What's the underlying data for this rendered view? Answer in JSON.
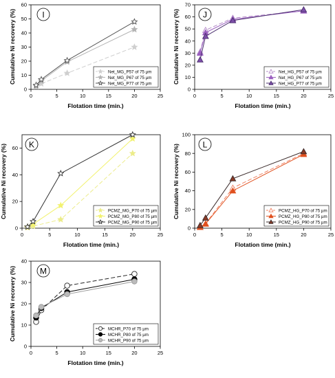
{
  "chart_data": [
    {
      "type": "line",
      "panel_label": "I",
      "xlabel": "Flotation time (min.)",
      "ylabel": "Cumulative Ni recovery (%)",
      "xlim": [
        0,
        25
      ],
      "ylim": [
        0,
        60
      ],
      "x_ticks": [
        0,
        5,
        10,
        15,
        20,
        25
      ],
      "y_ticks": [
        0,
        10,
        20,
        30,
        40,
        50,
        60
      ],
      "legend_position": "bottom-right",
      "series": [
        {
          "name": "Net_MG_P57 of 75 µm",
          "x": [
            1,
            2,
            7,
            20
          ],
          "y": [
            2,
            4,
            11.5,
            30
          ],
          "color": "#cfcfcf",
          "dash": "6,3",
          "marker": "star",
          "marker_fill": "#cfcfcf"
        },
        {
          "name": "Net_MG_P67 of 75 µm",
          "x": [
            1,
            2,
            7,
            20
          ],
          "y": [
            2.5,
            6,
            19.5,
            42.5
          ],
          "color": "#b3b3b3",
          "dash": "",
          "marker": "star",
          "marker_fill": "#b3b3b3"
        },
        {
          "name": "Net_MG_P77 of 75 µm",
          "x": [
            1,
            2,
            7,
            20
          ],
          "y": [
            3,
            7,
            20.5,
            48
          ],
          "color": "#555555",
          "dash": "",
          "marker": "star",
          "marker_fill": "#ffffff"
        }
      ]
    },
    {
      "type": "line",
      "panel_label": "J",
      "xlabel": "Flotation time (min.)",
      "ylabel": "Cumulative Ni recovery (%)",
      "xlim": [
        0,
        25
      ],
      "ylim": [
        0,
        70
      ],
      "x_ticks": [
        0,
        5,
        10,
        15,
        20,
        25
      ],
      "y_ticks": [
        0,
        10,
        20,
        30,
        40,
        50,
        60,
        70
      ],
      "legend_position": "bottom-right",
      "series": [
        {
          "name": "Net_HG_P57 of 75 µm",
          "x": [
            1,
            2,
            7,
            20
          ],
          "y": [
            31,
            49,
            59,
            65
          ],
          "color": "#b48cc8",
          "dash": "6,3",
          "marker": "triangle",
          "marker_fill": "#ffffff"
        },
        {
          "name": "Net_HG_P67 of 75 µm",
          "x": [
            1,
            2,
            7,
            20
          ],
          "y": [
            30,
            47,
            58,
            65
          ],
          "color": "#9a5fbf",
          "dash": "",
          "marker": "triangle",
          "marker_fill": "#9a5fbf"
        },
        {
          "name": "Net_HG_P77 of 75 µm",
          "x": [
            1,
            2,
            7,
            20
          ],
          "y": [
            24.5,
            44,
            57,
            66
          ],
          "color": "#4a2e6e",
          "dash": "",
          "marker": "triangle",
          "marker_fill": "#7d4fa8"
        }
      ]
    },
    {
      "type": "line",
      "panel_label": "K",
      "xlabel": "Flotation time (min.)",
      "ylabel": "Cumulative Ni recovery (%)",
      "xlim": [
        0,
        25
      ],
      "ylim": [
        0,
        70
      ],
      "x_ticks": [
        0,
        5,
        10,
        15,
        20,
        25
      ],
      "y_ticks": [
        0,
        20,
        40,
        60
      ],
      "legend_position": "bottom-right",
      "series": [
        {
          "name": "PCMZ_MG_P70 of 75 µm",
          "x": [
            1,
            2,
            7,
            20
          ],
          "y": [
            0.5,
            1.5,
            6.5,
            56
          ],
          "color": "#ecec8a",
          "dash": "6,3",
          "marker": "star",
          "marker_fill": "#ecec8a"
        },
        {
          "name": "PCMZ_MG_P80 of 75 µm",
          "x": [
            1,
            2,
            7,
            20
          ],
          "y": [
            1,
            3,
            17,
            67
          ],
          "color": "#f2f26e",
          "dash": "",
          "marker": "star",
          "marker_fill": "#f2f26e"
        },
        {
          "name": "PCMZ_MG_P90 of 75 µm",
          "x": [
            1,
            2,
            7,
            20
          ],
          "y": [
            1,
            5,
            41,
            70
          ],
          "color": "#333333",
          "dash": "",
          "marker": "star",
          "marker_fill": "#ffffff"
        }
      ]
    },
    {
      "type": "line",
      "panel_label": "L",
      "xlabel": "Flotation time (min.)",
      "ylabel": "Cumulative Ni recovery (%)",
      "xlim": [
        0,
        25
      ],
      "ylim": [
        0,
        100
      ],
      "x_ticks": [
        0,
        5,
        10,
        15,
        20,
        25
      ],
      "y_ticks": [
        0,
        20,
        40,
        60,
        80,
        100
      ],
      "legend_position": "bottom-right",
      "series": [
        {
          "name": "PCMZ_HG_P70 of 75 µm",
          "x": [
            1,
            2,
            7,
            20
          ],
          "y": [
            1,
            5,
            43,
            80
          ],
          "color": "#f08060",
          "dash": "6,3",
          "marker": "triangle",
          "marker_fill": "#ffffff"
        },
        {
          "name": "PCMZ_HG_P80 of 75 µm",
          "x": [
            1,
            2,
            7,
            20
          ],
          "y": [
            1,
            4.5,
            40,
            79
          ],
          "color": "#e0501e",
          "dash": "",
          "marker": "triangle",
          "marker_fill": "#e0501e"
        },
        {
          "name": "PCMZ_HG_P90 of 75 µm",
          "x": [
            1,
            2,
            7,
            20
          ],
          "y": [
            3,
            11,
            53,
            82
          ],
          "color": "#3a2a2a",
          "dash": "",
          "marker": "triangle",
          "marker_fill": "#8a3a26"
        }
      ]
    },
    {
      "type": "line",
      "panel_label": "M",
      "xlabel": "Flotation time (min.)",
      "ylabel": "Cumulative Ni recovery (%)",
      "xlim": [
        0,
        25
      ],
      "ylim": [
        0,
        40
      ],
      "x_ticks": [
        0,
        5,
        10,
        15,
        20,
        25
      ],
      "y_ticks": [
        0,
        10,
        20,
        30,
        40
      ],
      "legend_position": "bottom-right",
      "series": [
        {
          "name": "MCHR_P70 of 75 µm",
          "x": [
            1,
            2,
            7,
            20
          ],
          "y": [
            11.5,
            17,
            28.5,
            34
          ],
          "color": "#222222",
          "dash": "6,3",
          "marker": "circle",
          "marker_fill": "#ffffff"
        },
        {
          "name": "MCHR_P80 of 75 µm",
          "x": [
            1,
            2,
            7,
            20
          ],
          "y": [
            13.5,
            18,
            25.5,
            31.5
          ],
          "color": "#000000",
          "dash": "",
          "marker": "circle",
          "marker_fill": "#000000"
        },
        {
          "name": "MCHR_P90 of 75 µm",
          "x": [
            1,
            2,
            7,
            20
          ],
          "y": [
            14.5,
            18.5,
            24.5,
            30.5
          ],
          "color": "#999999",
          "dash": "",
          "marker": "circle",
          "marker_fill": "#bbbbbb"
        }
      ]
    }
  ]
}
